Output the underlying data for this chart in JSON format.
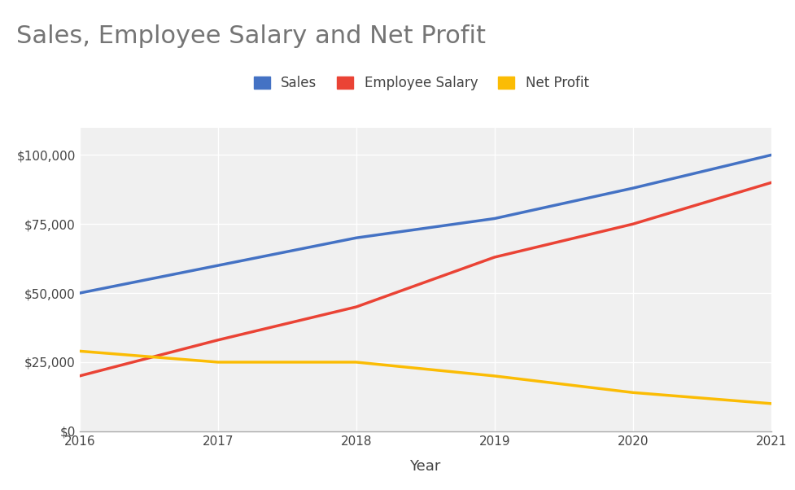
{
  "title": "Sales, Employee Salary and Net Profit",
  "xlabel": "Year",
  "ylabel": "",
  "years": [
    2016,
    2017,
    2018,
    2019,
    2020,
    2021
  ],
  "sales": [
    50000,
    60000,
    70000,
    77000,
    88000,
    100000
  ],
  "employee_salary": [
    20000,
    33000,
    45000,
    63000,
    75000,
    90000
  ],
  "net_profit": [
    29000,
    25000,
    25000,
    20000,
    14000,
    10000
  ],
  "sales_color": "#4472C4",
  "salary_color": "#EA4335",
  "profit_color": "#FBBC04",
  "background_color": "#ffffff",
  "plot_bg_color": "#f0f0f0",
  "grid_color": "#ffffff",
  "title_color": "#757575",
  "title_fontsize": 22,
  "legend_labels": [
    "Sales",
    "Employee Salary",
    "Net Profit"
  ],
  "ylim": [
    0,
    110000
  ],
  "yticks": [
    0,
    25000,
    50000,
    75000,
    100000
  ],
  "line_width": 2.5
}
